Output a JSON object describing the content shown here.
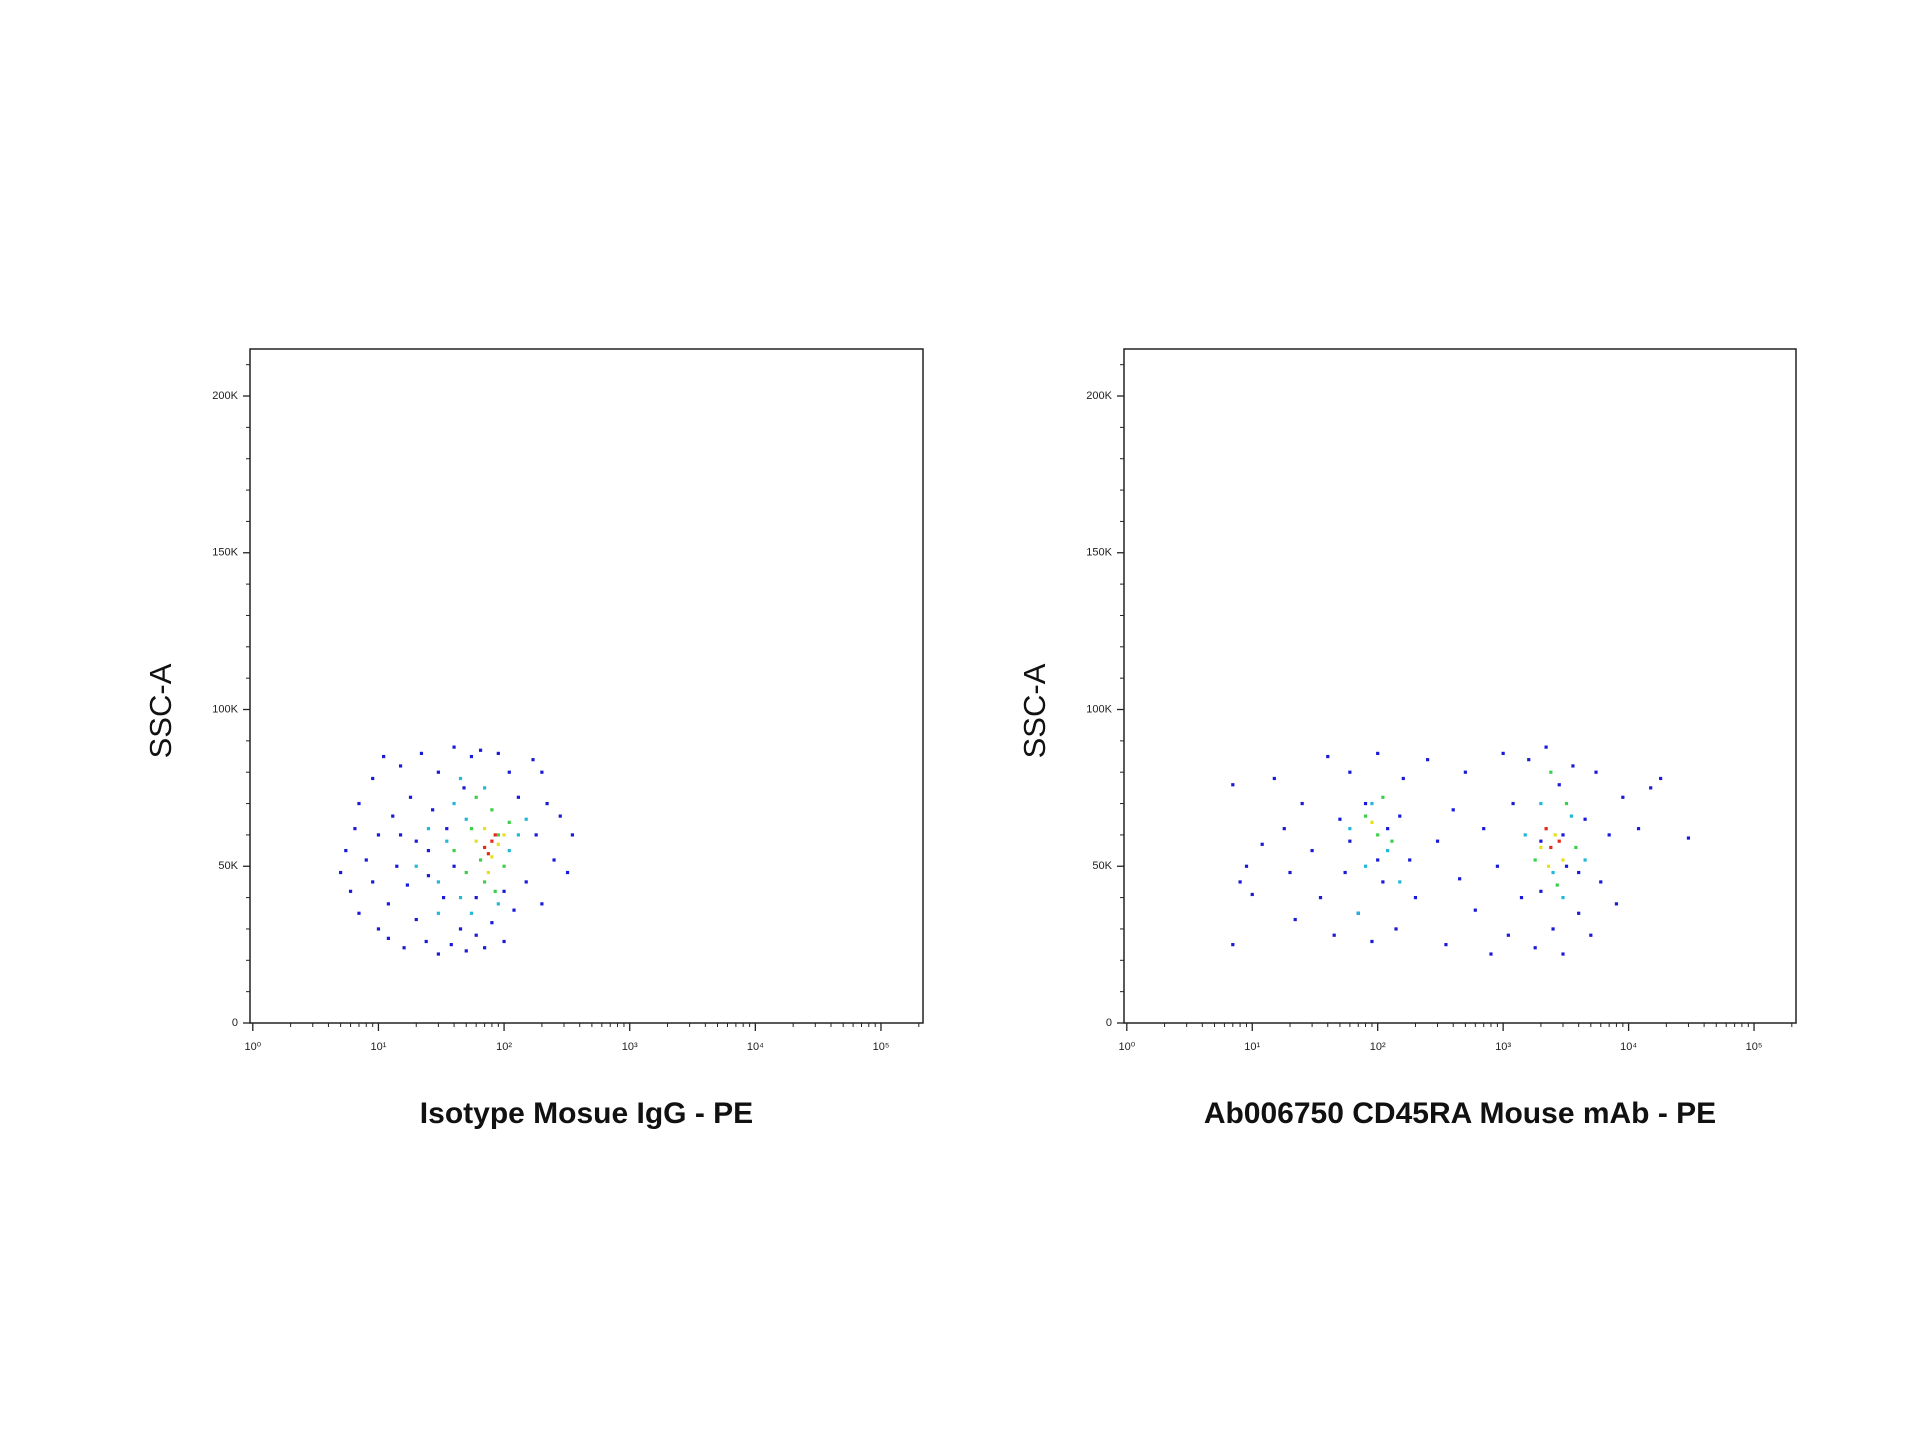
{
  "chart_data": [
    {
      "type": "scatter",
      "xlabel": "Isotype Mosue IgG - PE",
      "ylabel": "SSC-A",
      "xscale": "log",
      "xlim": [
        0.95,
        216000
      ],
      "ylim": [
        0,
        215000
      ],
      "xticks": [
        {
          "value": 1,
          "label": "10⁰"
        },
        {
          "value": 10,
          "label": "10¹"
        },
        {
          "value": 100,
          "label": "10²"
        },
        {
          "value": 1000,
          "label": "10³"
        },
        {
          "value": 10000,
          "label": "10⁴"
        },
        {
          "value": 100000,
          "label": "10⁵"
        }
      ],
      "xminorticks": [
        2,
        3,
        4,
        5,
        6,
        7,
        8,
        9,
        20,
        30,
        40,
        50,
        60,
        70,
        80,
        90,
        200,
        300,
        400,
        500,
        600,
        700,
        800,
        900,
        2000,
        3000,
        4000,
        5000,
        6000,
        7000,
        8000,
        9000,
        20000,
        30000,
        40000,
        50000,
        60000,
        70000,
        80000,
        90000,
        200000
      ],
      "yticks": [
        {
          "value": 0,
          "label": "0"
        },
        {
          "value": 50000,
          "label": "50K"
        },
        {
          "value": 100000,
          "label": "100K"
        },
        {
          "value": 150000,
          "label": "150K"
        },
        {
          "value": 200000,
          "label": "200K"
        }
      ],
      "yminorticks": [
        10000,
        20000,
        30000,
        40000,
        60000,
        70000,
        80000,
        90000,
        110000,
        120000,
        130000,
        140000,
        160000,
        170000,
        180000,
        190000,
        210000
      ],
      "series": [
        {
          "color": "#1a1adb",
          "x": [
            5,
            5.5,
            6,
            6.5,
            7,
            7,
            8,
            9,
            9,
            10,
            10,
            11,
            12,
            12,
            13,
            14,
            15,
            16,
            17,
            18,
            20,
            20,
            22,
            24,
            25,
            27,
            30,
            30,
            33,
            35,
            38,
            40,
            45,
            48,
            50,
            55,
            60,
            65,
            70,
            80,
            90,
            100,
            110,
            120,
            130,
            150,
            170,
            180,
            200,
            220,
            250,
            280,
            320,
            350,
            25,
            40,
            60,
            100,
            15,
            200
          ],
          "values": [
            48000,
            55000,
            42000,
            62000,
            35000,
            70000,
            52000,
            45000,
            78000,
            30000,
            60000,
            85000,
            38000,
            27000,
            66000,
            50000,
            82000,
            24000,
            44000,
            72000,
            33000,
            58000,
            86000,
            26000,
            47000,
            68000,
            22000,
            80000,
            40000,
            62000,
            25000,
            88000,
            30000,
            75000,
            23000,
            85000,
            28000,
            87000,
            24000,
            32000,
            86000,
            26000,
            80000,
            36000,
            72000,
            45000,
            84000,
            60000,
            38000,
            70000,
            52000,
            66000,
            48000,
            60000,
            55000,
            50000,
            40000,
            42000,
            60000,
            80000
          ]
        },
        {
          "color": "#22b8d8",
          "x": [
            20,
            25,
            30,
            35,
            40,
            45,
            50,
            55,
            70,
            90,
            110,
            130,
            150,
            30,
            45
          ],
          "values": [
            50000,
            62000,
            45000,
            58000,
            70000,
            40000,
            65000,
            35000,
            75000,
            38000,
            55000,
            60000,
            65000,
            35000,
            78000
          ]
        },
        {
          "color": "#3ecf4a",
          "x": [
            40,
            50,
            55,
            60,
            70,
            80,
            90,
            100,
            110,
            65,
            85
          ],
          "values": [
            55000,
            48000,
            62000,
            72000,
            45000,
            68000,
            60000,
            50000,
            64000,
            52000,
            42000
          ]
        },
        {
          "color": "#e8e01c",
          "x": [
            60,
            70,
            80,
            90,
            75,
            100
          ],
          "values": [
            58000,
            62000,
            53000,
            57000,
            48000,
            60000
          ]
        },
        {
          "color": "#e8281c",
          "x": [
            70,
            80,
            75,
            85
          ],
          "values": [
            56000,
            58000,
            54000,
            60000
          ]
        }
      ]
    },
    {
      "type": "scatter",
      "xlabel": "Ab006750 CD45RA Mouse mAb - PE",
      "ylabel": "SSC-A",
      "xscale": "log",
      "xlim": [
        0.95,
        216000
      ],
      "ylim": [
        0,
        215000
      ],
      "xticks": [
        {
          "value": 1,
          "label": "10⁰"
        },
        {
          "value": 10,
          "label": "10¹"
        },
        {
          "value": 100,
          "label": "10²"
        },
        {
          "value": 1000,
          "label": "10³"
        },
        {
          "value": 10000,
          "label": "10⁴"
        },
        {
          "value": 100000,
          "label": "10⁵"
        }
      ],
      "xminorticks": [
        2,
        3,
        4,
        5,
        6,
        7,
        8,
        9,
        20,
        30,
        40,
        50,
        60,
        70,
        80,
        90,
        200,
        300,
        400,
        500,
        600,
        700,
        800,
        900,
        2000,
        3000,
        4000,
        5000,
        6000,
        7000,
        8000,
        9000,
        20000,
        30000,
        40000,
        50000,
        60000,
        70000,
        80000,
        90000,
        200000
      ],
      "yticks": [
        {
          "value": 0,
          "label": "0"
        },
        {
          "value": 50000,
          "label": "50K"
        },
        {
          "value": 100000,
          "label": "100K"
        },
        {
          "value": 150000,
          "label": "150K"
        },
        {
          "value": 200000,
          "label": "200K"
        }
      ],
      "yminorticks": [
        10000,
        20000,
        30000,
        40000,
        60000,
        70000,
        80000,
        90000,
        110000,
        120000,
        130000,
        140000,
        160000,
        170000,
        180000,
        190000,
        210000
      ],
      "series": [
        {
          "color": "#1a1adb",
          "x": [
            7,
            7,
            8,
            9,
            10,
            12,
            15,
            18,
            20,
            22,
            25,
            30,
            35,
            40,
            45,
            50,
            55,
            60,
            70,
            80,
            90,
            100,
            110,
            120,
            140,
            160,
            180,
            200,
            250,
            300,
            350,
            400,
            450,
            500,
            600,
            700,
            800,
            900,
            1000,
            1100,
            1200,
            1400,
            1600,
            1800,
            2000,
            2200,
            2500,
            2800,
            3000,
            3200,
            3600,
            4000,
            4500,
            5000,
            5500,
            6000,
            7000,
            8000,
            9000,
            12000,
            15000,
            18000,
            30000,
            60,
            100,
            150,
            2000,
            3000,
            4000
          ],
          "values": [
            25000,
            76000,
            45000,
            50000,
            41000,
            57000,
            78000,
            62000,
            48000,
            33000,
            70000,
            55000,
            40000,
            85000,
            28000,
            65000,
            48000,
            80000,
            35000,
            70000,
            26000,
            86000,
            45000,
            62000,
            30000,
            78000,
            52000,
            40000,
            84000,
            58000,
            25000,
            68000,
            46000,
            80000,
            36000,
            62000,
            22000,
            50000,
            86000,
            28000,
            70000,
            40000,
            84000,
            24000,
            58000,
            88000,
            30000,
            76000,
            22000,
            50000,
            82000,
            35000,
            65000,
            28000,
            80000,
            45000,
            60000,
            38000,
            72000,
            62000,
            75000,
            78000,
            59000,
            58000,
            52000,
            66000,
            42000,
            60000,
            48000
          ]
        },
        {
          "color": "#22b8d8",
          "x": [
            60,
            80,
            90,
            120,
            150,
            1500,
            2000,
            2500,
            3000,
            3500,
            4500,
            70
          ],
          "values": [
            62000,
            50000,
            70000,
            55000,
            45000,
            60000,
            70000,
            48000,
            40000,
            66000,
            52000,
            35000
          ]
        },
        {
          "color": "#3ecf4a",
          "x": [
            80,
            100,
            110,
            130,
            1800,
            2200,
            2700,
            3200,
            3800,
            2400
          ],
          "values": [
            66000,
            60000,
            72000,
            58000,
            52000,
            62000,
            44000,
            70000,
            56000,
            80000
          ]
        },
        {
          "color": "#e8e01c",
          "x": [
            90,
            2000,
            2600,
            3000,
            2300
          ],
          "values": [
            64000,
            56000,
            60000,
            52000,
            50000
          ]
        },
        {
          "color": "#e8281c",
          "x": [
            2400,
            2800,
            2200
          ],
          "values": [
            56000,
            58000,
            62000
          ]
        }
      ]
    }
  ]
}
